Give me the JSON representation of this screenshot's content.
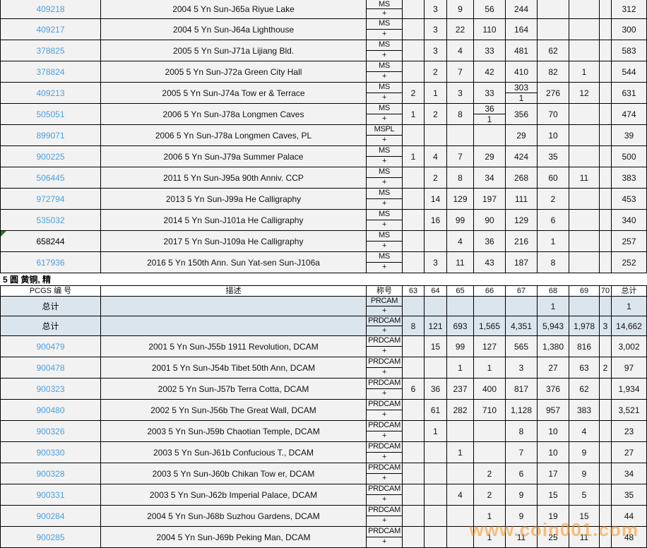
{
  "page": {
    "watermark": "www.coin001.com",
    "colors": {
      "link": "#4da0dc",
      "row_bg": "#f2f2f2",
      "total_row_bg": "#dbe5ee",
      "border": "#000000",
      "watermark": "#f6921e",
      "marker_green": "#1f7a1f"
    }
  },
  "columns": {
    "id": "PCGS 编 号",
    "desc": "描述",
    "designation": "称号",
    "grades": [
      "63",
      "64",
      "65",
      "66",
      "67",
      "68",
      "69",
      "70"
    ],
    "total": "总计"
  },
  "section_ms": {
    "rows": [
      {
        "id": "409218",
        "link": true,
        "desc": "2004 5 Yn Sun-J65a Riyue Lake",
        "desig": "MS",
        "plus": "+",
        "cells": [
          "",
          "3",
          "9",
          "56",
          "244",
          "",
          "",
          ""
        ],
        "total": "312"
      },
      {
        "id": "409217",
        "link": true,
        "desc": "2004 5 Yn Sun-J64a Lighthouse",
        "desig": "MS",
        "plus": "+",
        "cells": [
          "",
          "3",
          "22",
          "110",
          "164",
          "",
          "",
          ""
        ],
        "total": "300"
      },
      {
        "id": "378825",
        "link": true,
        "desc": "2005 5 Yn Sun-J71a Lijiang Bld.",
        "desig": "MS",
        "plus": "+",
        "cells": [
          "",
          "3",
          "4",
          "33",
          "481",
          "62",
          "",
          ""
        ],
        "total": "583"
      },
      {
        "id": "378824",
        "link": true,
        "desc": "2005 5 Yn Sun-J72a Green City Hall",
        "desig": "MS",
        "plus": "+",
        "cells": [
          "",
          "2",
          "7",
          "42",
          "410",
          "82",
          "1",
          ""
        ],
        "total": "544"
      },
      {
        "id": "409213",
        "link": true,
        "desc": "2005 5 Yn Sun-J74a Tow er & Terrace",
        "desig": "MS",
        "plus": "+",
        "cells": [
          "2",
          "1",
          "3",
          "33",
          {
            "top": "303",
            "bottom": "1"
          },
          "276",
          "12",
          ""
        ],
        "total": "631"
      },
      {
        "id": "505051",
        "link": true,
        "desc": "2006 5 Yn Sun-J78a Longmen Caves",
        "desig": "MS",
        "plus": "+",
        "cells": [
          "1",
          "2",
          "8",
          {
            "top": "36",
            "bottom": "1"
          },
          "356",
          "70",
          "",
          ""
        ],
        "total": "474"
      },
      {
        "id": "899071",
        "link": true,
        "desc": "2006 5 Yn Sun-J78a Longmen Caves, PL",
        "desig": "MSPL",
        "plus": "+",
        "cells": [
          "",
          "",
          "",
          "",
          "29",
          "10",
          "",
          ""
        ],
        "total": "39"
      },
      {
        "id": "900225",
        "link": true,
        "desc": "2006 5 Yn Sun-J79a Summer Palace",
        "desig": "MS",
        "plus": "+",
        "cells": [
          "1",
          "4",
          "7",
          "29",
          "424",
          "35",
          "",
          ""
        ],
        "total": "500"
      },
      {
        "id": "506445",
        "link": true,
        "desc": "2011 5 Yn Sun-J95a 90th Anniv. CCP",
        "desig": "MS",
        "plus": "+",
        "cells": [
          "",
          "2",
          "8",
          "34",
          "268",
          "60",
          "11",
          ""
        ],
        "total": "383"
      },
      {
        "id": "972794",
        "link": true,
        "desc": "2013 5 Yn Sun-J99a He Calligraphy",
        "desig": "MS",
        "plus": "+",
        "cells": [
          "",
          "14",
          "129",
          "197",
          "111",
          "2",
          "",
          ""
        ],
        "total": "453"
      },
      {
        "id": "535032",
        "link": true,
        "desc": "2014 5 Yn Sun-J101a He Calligraphy",
        "desig": "MS",
        "plus": "+",
        "cells": [
          "",
          "16",
          "99",
          "90",
          "129",
          "6",
          "",
          ""
        ],
        "total": "340"
      },
      {
        "id": "658244",
        "link": false,
        "marker": true,
        "desc": "2017 5 Yn Sun-J109a He Calligraphy",
        "desig": "MS",
        "plus": "+",
        "cells": [
          "",
          "",
          "4",
          "36",
          "216",
          "1",
          "",
          ""
        ],
        "total": "257"
      },
      {
        "id": "617936",
        "link": true,
        "desc": "2016 5 Yn 150th Ann. Sun Yat-sen Sun-J106a",
        "desig": "MS",
        "plus": "+",
        "cells": [
          "",
          "3",
          "11",
          "43",
          "187",
          "8",
          "",
          ""
        ],
        "total": "252"
      }
    ]
  },
  "section_proof": {
    "label": "5 圆 黄铜, 精",
    "total_rows": [
      {
        "id": "总计",
        "link": false,
        "desc": "",
        "desig": "PRCAM",
        "plus": "+",
        "cells": [
          "",
          "",
          "",
          "",
          "",
          "1",
          "",
          ""
        ],
        "total": "1"
      },
      {
        "id": "总计",
        "link": false,
        "desc": "",
        "desig": "PRDCAM",
        "plus": "+",
        "cells": [
          "8",
          "121",
          "693",
          "1,565",
          "4,351",
          "5,943",
          "1,978",
          "3"
        ],
        "total": "14,662"
      }
    ],
    "rows": [
      {
        "id": "900479",
        "link": true,
        "desc": "2001 5 Yn Sun-J55b 1911 Revolution, DCAM",
        "desig": "PRDCAM",
        "plus": "+",
        "cells": [
          "",
          "15",
          "99",
          "127",
          "565",
          "1,380",
          "816",
          ""
        ],
        "total": "3,002"
      },
      {
        "id": "900478",
        "link": true,
        "desc": "2001 5 Yn Sun-J54b Tibet 50th Ann, DCAM",
        "desig": "PRDCAM",
        "plus": "+",
        "cells": [
          "",
          "",
          "1",
          "1",
          "3",
          "27",
          "63",
          "2"
        ],
        "total": "97"
      },
      {
        "id": "900323",
        "link": true,
        "desc": "2002 5 Yn Sun-J57b Terra Cotta, DCAM",
        "desig": "PRDCAM",
        "plus": "+",
        "cells": [
          "6",
          "36",
          "237",
          "400",
          "817",
          "376",
          "62",
          ""
        ],
        "total": "1,934"
      },
      {
        "id": "900480",
        "link": true,
        "desc": "2002 5 Yn Sun-J56b The Great Wall, DCAM",
        "desig": "PRDCAM",
        "plus": "+",
        "cells": [
          "",
          "61",
          "282",
          "710",
          "1,128",
          "957",
          "383",
          ""
        ],
        "total": "3,521"
      },
      {
        "id": "900326",
        "link": true,
        "desc": "2003 5 Yn Sun-J59b Chaotian Temple, DCAM",
        "desig": "PRDCAM",
        "plus": "+",
        "cells": [
          "",
          "1",
          "",
          "",
          "8",
          "10",
          "4",
          ""
        ],
        "total": "23"
      },
      {
        "id": "900330",
        "link": true,
        "desc": "2003 5 Yn Sun-J61b Confucious T., DCAM",
        "desig": "PRDCAM",
        "plus": "+",
        "cells": [
          "",
          "",
          "1",
          "",
          "7",
          "10",
          "9",
          ""
        ],
        "total": "27"
      },
      {
        "id": "900328",
        "link": true,
        "desc": "2003 5 Yn Sun-J60b Chikan Tow er, DCAM",
        "desig": "PRDCAM",
        "plus": "+",
        "cells": [
          "",
          "",
          "",
          "2",
          "6",
          "17",
          "9",
          ""
        ],
        "total": "34"
      },
      {
        "id": "900331",
        "link": true,
        "desc": "2003 5 Yn Sun-J62b Imperial Palace, DCAM",
        "desig": "PRDCAM",
        "plus": "+",
        "cells": [
          "",
          "",
          "4",
          "2",
          "9",
          "15",
          "5",
          ""
        ],
        "total": "35"
      },
      {
        "id": "900284",
        "link": true,
        "desc": "2004 5 Yn Sun-J68b Suzhou Gardens, DCAM",
        "desig": "PRDCAM",
        "plus": "+",
        "cells": [
          "",
          "",
          "",
          "1",
          "9",
          "19",
          "15",
          ""
        ],
        "total": "44"
      },
      {
        "id": "900285",
        "link": true,
        "desc": "2004 5 Yn Sun-J69b Peking Man, DCAM",
        "desig": "PRDCAM",
        "plus": "+",
        "cells": [
          "",
          "",
          "",
          "1",
          "11",
          "25",
          "11",
          ""
        ],
        "total": "48"
      }
    ]
  }
}
